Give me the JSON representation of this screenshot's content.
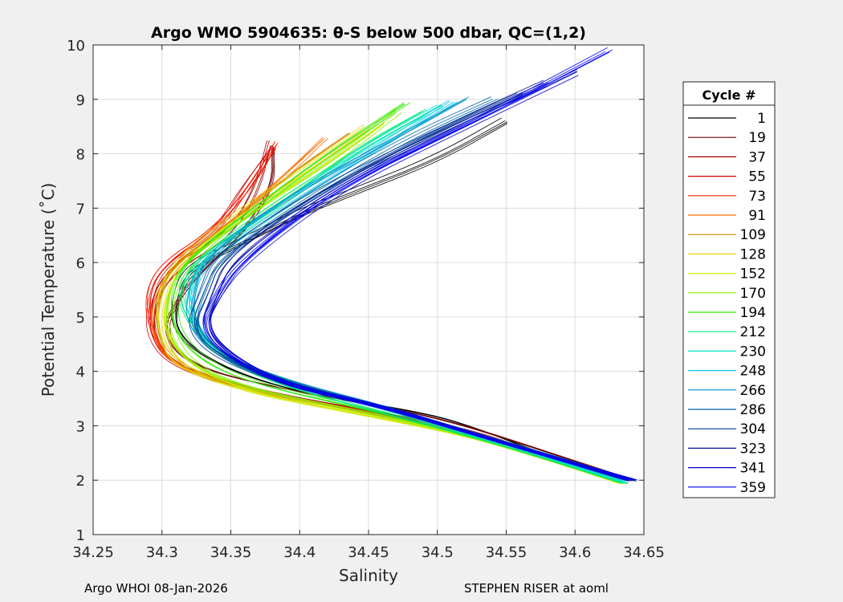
{
  "chart_data": {
    "type": "line",
    "title": "Argo WMO 5904635: θ-S below 500 dbar,  QC=(1,2)",
    "xlabel": "Salinity",
    "ylabel": "Potential Temperature (˚C)",
    "xlim": [
      34.25,
      34.65
    ],
    "ylim": [
      1,
      10
    ],
    "xticks": [
      "34.25",
      "34.3",
      "34.35",
      "34.4",
      "34.45",
      "34.5",
      "34.55",
      "34.6",
      "34.65"
    ],
    "yticks": [
      "1",
      "2",
      "3",
      "4",
      "5",
      "6",
      "7",
      "8",
      "9",
      "10"
    ],
    "grid": true,
    "legend": {
      "title": "Cycle #",
      "placement": "right",
      "entries": [
        {
          "label": "1",
          "color": "#000000"
        },
        {
          "label": "19",
          "color": "#6b0000"
        },
        {
          "label": "37",
          "color": "#a00000"
        },
        {
          "label": "55",
          "color": "#d40000"
        },
        {
          "label": "73",
          "color": "#ff1a00"
        },
        {
          "label": "91",
          "color": "#ff6a00"
        },
        {
          "label": "109",
          "color": "#cc8800"
        },
        {
          "label": "128",
          "color": "#e6d800"
        },
        {
          "label": "152",
          "color": "#c8f000"
        },
        {
          "label": "170",
          "color": "#8aee00"
        },
        {
          "label": "194",
          "color": "#2ee800"
        },
        {
          "label": "212",
          "color": "#00e878"
        },
        {
          "label": "230",
          "color": "#00e8c0"
        },
        {
          "label": "248",
          "color": "#00c8e8"
        },
        {
          "label": "266",
          "color": "#0096c8"
        },
        {
          "label": "286",
          "color": "#0064aa"
        },
        {
          "label": "304",
          "color": "#003c96"
        },
        {
          "label": "323",
          "color": "#000a8c"
        },
        {
          "label": "341",
          "color": "#0000c8"
        },
        {
          "label": "359",
          "color": "#0000ff"
        }
      ]
    },
    "series": [
      {
        "color": "#000000",
        "points": [
          [
            34.64,
            2.0
          ],
          [
            34.58,
            2.45
          ],
          [
            34.53,
            2.95
          ],
          [
            34.49,
            3.25
          ],
          [
            34.4,
            3.6
          ],
          [
            34.34,
            4.1
          ],
          [
            34.31,
            4.7
          ],
          [
            34.31,
            5.3
          ],
          [
            34.32,
            5.9
          ],
          [
            34.36,
            6.4
          ],
          [
            34.4,
            6.9
          ],
          [
            34.44,
            7.3
          ],
          [
            34.5,
            7.9
          ],
          [
            34.55,
            8.6
          ]
        ]
      },
      {
        "color": "#6b0000",
        "points": [
          [
            34.64,
            2.0
          ],
          [
            34.58,
            2.5
          ],
          [
            34.52,
            3.0
          ],
          [
            34.47,
            3.3
          ],
          [
            34.38,
            3.7
          ],
          [
            34.32,
            4.1
          ],
          [
            34.3,
            4.7
          ],
          [
            34.31,
            5.3
          ],
          [
            34.33,
            5.9
          ],
          [
            34.36,
            6.6
          ],
          [
            34.38,
            7.4
          ],
          [
            34.38,
            8.1
          ]
        ]
      },
      {
        "color": "#a00000",
        "points": [
          [
            34.64,
            2.0
          ],
          [
            34.58,
            2.45
          ],
          [
            34.53,
            2.9
          ],
          [
            34.47,
            3.2
          ],
          [
            34.38,
            3.6
          ],
          [
            34.31,
            4.1
          ],
          [
            34.295,
            4.6
          ],
          [
            34.295,
            5.3
          ],
          [
            34.31,
            5.9
          ],
          [
            34.35,
            6.5
          ],
          [
            34.37,
            7.3
          ],
          [
            34.38,
            8.2
          ]
        ]
      },
      {
        "color": "#d40000",
        "points": [
          [
            34.64,
            2.0
          ],
          [
            34.58,
            2.45
          ],
          [
            34.52,
            2.9
          ],
          [
            34.45,
            3.25
          ],
          [
            34.37,
            3.6
          ],
          [
            34.31,
            4.05
          ],
          [
            34.29,
            4.6
          ],
          [
            34.29,
            5.3
          ],
          [
            34.3,
            5.9
          ],
          [
            34.34,
            6.6
          ],
          [
            34.36,
            7.4
          ],
          [
            34.38,
            8.1
          ]
        ]
      },
      {
        "color": "#ff1a00",
        "points": [
          [
            34.64,
            2.0
          ],
          [
            34.58,
            2.45
          ],
          [
            34.52,
            2.9
          ],
          [
            34.45,
            3.25
          ],
          [
            34.37,
            3.6
          ],
          [
            34.31,
            4.1
          ],
          [
            34.295,
            4.7
          ],
          [
            34.29,
            5.35
          ],
          [
            34.3,
            5.95
          ],
          [
            34.34,
            6.6
          ],
          [
            34.37,
            7.5
          ],
          [
            34.385,
            8.2
          ]
        ]
      },
      {
        "color": "#ff6a00",
        "points": [
          [
            34.64,
            2.0
          ],
          [
            34.58,
            2.45
          ],
          [
            34.52,
            2.9
          ],
          [
            34.45,
            3.25
          ],
          [
            34.37,
            3.65
          ],
          [
            34.31,
            4.1
          ],
          [
            34.295,
            4.7
          ],
          [
            34.295,
            5.3
          ],
          [
            34.31,
            5.95
          ],
          [
            34.35,
            6.7
          ],
          [
            34.39,
            7.6
          ],
          [
            34.42,
            8.3
          ]
        ]
      },
      {
        "color": "#cc8800",
        "points": [
          [
            34.64,
            2.0
          ],
          [
            34.58,
            2.45
          ],
          [
            34.52,
            2.9
          ],
          [
            34.45,
            3.25
          ],
          [
            34.37,
            3.65
          ],
          [
            34.31,
            4.1
          ],
          [
            34.3,
            4.7
          ],
          [
            34.3,
            5.3
          ],
          [
            34.31,
            5.95
          ],
          [
            34.35,
            6.7
          ],
          [
            34.4,
            7.7
          ],
          [
            34.44,
            8.4
          ]
        ]
      },
      {
        "color": "#e6d800",
        "points": [
          [
            34.635,
            1.95
          ],
          [
            34.58,
            2.4
          ],
          [
            34.52,
            2.85
          ],
          [
            34.44,
            3.25
          ],
          [
            34.36,
            3.65
          ],
          [
            34.31,
            4.1
          ],
          [
            34.3,
            4.7
          ],
          [
            34.3,
            5.3
          ],
          [
            34.31,
            5.95
          ],
          [
            34.35,
            6.8
          ],
          [
            34.41,
            7.8
          ],
          [
            34.45,
            8.5
          ]
        ]
      },
      {
        "color": "#c8f000",
        "points": [
          [
            34.635,
            1.95
          ],
          [
            34.58,
            2.4
          ],
          [
            34.52,
            2.85
          ],
          [
            34.44,
            3.25
          ],
          [
            34.36,
            3.65
          ],
          [
            34.32,
            4.1
          ],
          [
            34.3,
            4.7
          ],
          [
            34.3,
            5.3
          ],
          [
            34.31,
            5.95
          ],
          [
            34.36,
            6.9
          ],
          [
            34.42,
            7.9
          ],
          [
            34.46,
            8.6
          ]
        ]
      },
      {
        "color": "#8aee00",
        "points": [
          [
            34.635,
            1.95
          ],
          [
            34.58,
            2.4
          ],
          [
            34.52,
            2.85
          ],
          [
            34.44,
            3.3
          ],
          [
            34.36,
            3.7
          ],
          [
            34.32,
            4.15
          ],
          [
            34.305,
            4.75
          ],
          [
            34.305,
            5.35
          ],
          [
            34.315,
            6.0
          ],
          [
            34.37,
            7.0
          ],
          [
            34.43,
            8.0
          ],
          [
            34.47,
            8.8
          ]
        ]
      },
      {
        "color": "#2ee800",
        "points": [
          [
            34.635,
            1.95
          ],
          [
            34.58,
            2.4
          ],
          [
            34.52,
            2.85
          ],
          [
            34.45,
            3.3
          ],
          [
            34.37,
            3.75
          ],
          [
            34.33,
            4.2
          ],
          [
            34.31,
            4.8
          ],
          [
            34.31,
            5.4
          ],
          [
            34.32,
            6.0
          ],
          [
            34.37,
            7.0
          ],
          [
            34.43,
            8.1
          ],
          [
            34.48,
            8.9
          ]
        ]
      },
      {
        "color": "#00e878",
        "points": [
          [
            34.635,
            1.95
          ],
          [
            34.58,
            2.4
          ],
          [
            34.52,
            2.85
          ],
          [
            34.45,
            3.3
          ],
          [
            34.38,
            3.8
          ],
          [
            34.34,
            4.3
          ],
          [
            34.32,
            4.85
          ],
          [
            34.31,
            5.4
          ],
          [
            34.32,
            6.0
          ],
          [
            34.38,
            7.0
          ],
          [
            34.44,
            8.1
          ],
          [
            34.49,
            8.8
          ]
        ]
      },
      {
        "color": "#00e8c0",
        "points": [
          [
            34.635,
            1.95
          ],
          [
            34.58,
            2.4
          ],
          [
            34.52,
            2.85
          ],
          [
            34.46,
            3.3
          ],
          [
            34.39,
            3.8
          ],
          [
            34.34,
            4.3
          ],
          [
            34.32,
            4.9
          ],
          [
            34.315,
            5.45
          ],
          [
            34.325,
            6.05
          ],
          [
            34.38,
            7.1
          ],
          [
            34.45,
            8.2
          ],
          [
            34.5,
            8.9
          ]
        ]
      },
      {
        "color": "#00c8e8",
        "points": [
          [
            34.637,
            2.0
          ],
          [
            34.58,
            2.45
          ],
          [
            34.52,
            2.9
          ],
          [
            34.46,
            3.35
          ],
          [
            34.39,
            3.8
          ],
          [
            34.34,
            4.3
          ],
          [
            34.32,
            4.9
          ],
          [
            34.32,
            5.45
          ],
          [
            34.33,
            6.05
          ],
          [
            34.39,
            7.1
          ],
          [
            34.46,
            8.2
          ],
          [
            34.51,
            9.0
          ]
        ]
      },
      {
        "color": "#0096c8",
        "points": [
          [
            34.638,
            2.0
          ],
          [
            34.58,
            2.45
          ],
          [
            34.52,
            2.9
          ],
          [
            34.46,
            3.35
          ],
          [
            34.39,
            3.8
          ],
          [
            34.34,
            4.3
          ],
          [
            34.32,
            4.9
          ],
          [
            34.32,
            5.45
          ],
          [
            34.33,
            6.1
          ],
          [
            34.39,
            7.2
          ],
          [
            34.47,
            8.3
          ],
          [
            34.52,
            9.0
          ]
        ]
      },
      {
        "color": "#0064aa",
        "points": [
          [
            34.64,
            2.0
          ],
          [
            34.58,
            2.45
          ],
          [
            34.52,
            2.9
          ],
          [
            34.46,
            3.35
          ],
          [
            34.39,
            3.8
          ],
          [
            34.34,
            4.3
          ],
          [
            34.32,
            4.85
          ],
          [
            34.33,
            5.5
          ],
          [
            34.34,
            6.1
          ],
          [
            34.41,
            7.3
          ],
          [
            34.48,
            8.3
          ],
          [
            34.54,
            9.0
          ]
        ]
      },
      {
        "color": "#003c96",
        "points": [
          [
            34.64,
            2.0
          ],
          [
            34.58,
            2.45
          ],
          [
            34.52,
            2.9
          ],
          [
            34.46,
            3.35
          ],
          [
            34.39,
            3.75
          ],
          [
            34.34,
            4.25
          ],
          [
            34.32,
            4.8
          ],
          [
            34.33,
            5.4
          ],
          [
            34.34,
            6.1
          ],
          [
            34.41,
            7.3
          ],
          [
            34.49,
            8.3
          ],
          [
            34.56,
            9.1
          ]
        ]
      },
      {
        "color": "#000a8c",
        "points": [
          [
            34.64,
            2.0
          ],
          [
            34.58,
            2.45
          ],
          [
            34.52,
            2.9
          ],
          [
            34.46,
            3.35
          ],
          [
            34.39,
            3.75
          ],
          [
            34.35,
            4.25
          ],
          [
            34.33,
            4.8
          ],
          [
            34.34,
            5.4
          ],
          [
            34.35,
            6.1
          ],
          [
            34.42,
            7.3
          ],
          [
            34.5,
            8.4
          ],
          [
            34.58,
            9.3
          ]
        ]
      },
      {
        "color": "#0000c8",
        "points": [
          [
            34.642,
            2.0
          ],
          [
            34.58,
            2.45
          ],
          [
            34.52,
            2.9
          ],
          [
            34.46,
            3.35
          ],
          [
            34.39,
            3.75
          ],
          [
            34.35,
            4.25
          ],
          [
            34.33,
            4.8
          ],
          [
            34.34,
            5.4
          ],
          [
            34.36,
            6.1
          ],
          [
            34.43,
            7.4
          ],
          [
            34.51,
            8.4
          ],
          [
            34.6,
            9.5
          ]
        ]
      },
      {
        "color": "#0000ff",
        "points": [
          [
            34.642,
            2.0
          ],
          [
            34.58,
            2.45
          ],
          [
            34.52,
            2.9
          ],
          [
            34.46,
            3.35
          ],
          [
            34.39,
            3.75
          ],
          [
            34.35,
            4.25
          ],
          [
            34.33,
            4.8
          ],
          [
            34.34,
            5.4
          ],
          [
            34.36,
            6.1
          ],
          [
            34.43,
            7.4
          ],
          [
            34.52,
            8.5
          ],
          [
            34.625,
            9.9
          ]
        ]
      }
    ]
  },
  "footer": {
    "left": "Argo WHOI 08-Jan-2026",
    "right": "STEPHEN RISER at aoml"
  }
}
